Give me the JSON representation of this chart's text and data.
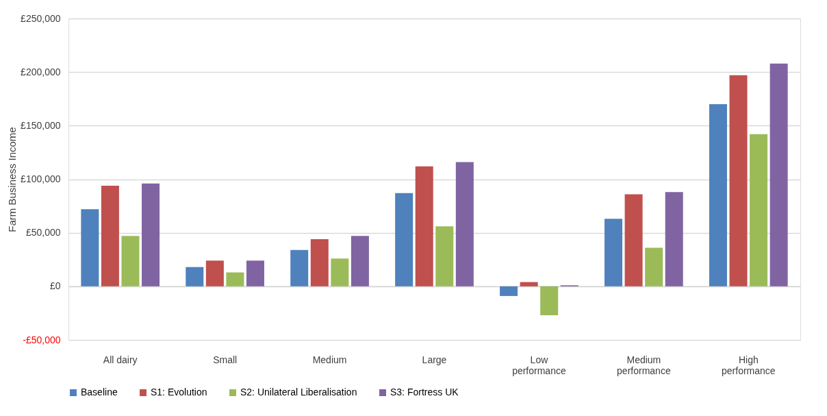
{
  "chart_data": {
    "type": "bar",
    "ylabel": "Farm Business Income",
    "categories": [
      "All dairy",
      "Small",
      "Medium",
      "Large",
      "Low performance",
      "Medium performance",
      "High performance"
    ],
    "series": [
      {
        "name": "Baseline",
        "color": "#4f81bd",
        "values": [
          72000,
          18000,
          34000,
          87000,
          -9000,
          63000,
          170000
        ]
      },
      {
        "name": "S1: Evolution",
        "color": "#c0504d",
        "values": [
          94000,
          24000,
          44000,
          112000,
          4000,
          86000,
          197000
        ]
      },
      {
        "name": "S2: Unilateral Liberalisation",
        "color": "#9bbb59",
        "values": [
          47000,
          13000,
          26000,
          56000,
          -27000,
          36000,
          142000
        ]
      },
      {
        "name": "S3: Fortress UK",
        "color": "#8064a2",
        "values": [
          96000,
          24000,
          47000,
          116000,
          1000,
          88000,
          208000
        ]
      }
    ],
    "ylim": [
      -50000,
      250000
    ],
    "yticks": [
      {
        "value": -50000,
        "label": "-£50,000"
      },
      {
        "value": 0,
        "label": "£0"
      },
      {
        "value": 50000,
        "label": "£50,000"
      },
      {
        "value": 100000,
        "label": "£100,000"
      },
      {
        "value": 150000,
        "label": "£150,000"
      },
      {
        "value": 200000,
        "label": "£200,000"
      },
      {
        "value": 250000,
        "label": "£250,000"
      }
    ],
    "grid": "y",
    "legend": "bottom"
  }
}
